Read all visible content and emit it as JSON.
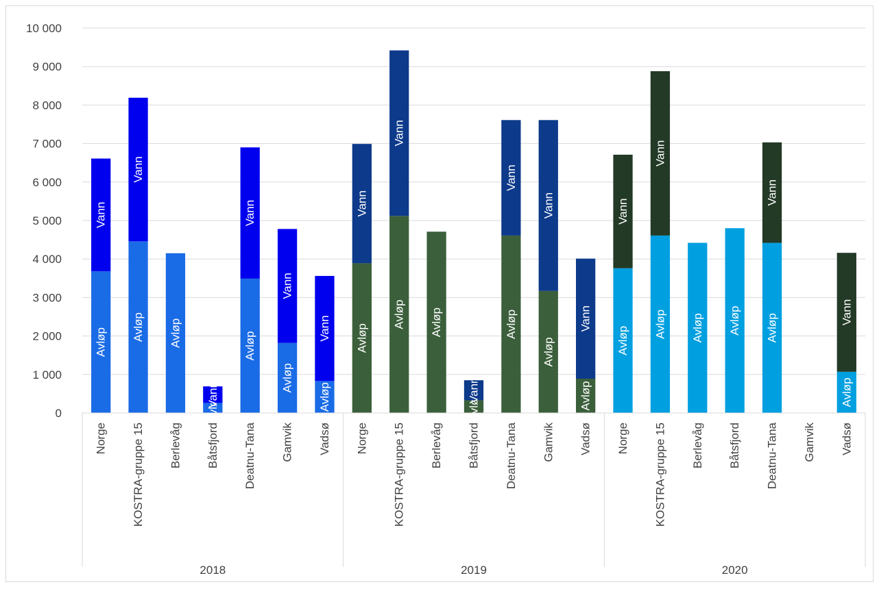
{
  "chart_data": {
    "type": "bar",
    "stacked": true,
    "title": "",
    "xlabel": "",
    "ylabel": "",
    "ylim": [
      0,
      10000
    ],
    "yticks": [
      0,
      1000,
      2000,
      3000,
      4000,
      5000,
      6000,
      7000,
      8000,
      9000,
      10000
    ],
    "ytick_labels": [
      "0",
      "1 000",
      "2 000",
      "3 000",
      "4 000",
      "5 000",
      "6 000",
      "7 000",
      "8 000",
      "9 000",
      "10 000"
    ],
    "grid": "horizontal",
    "legend": "none",
    "segment_labels": [
      "Avløp",
      "Vann"
    ],
    "groups": [
      {
        "year": "2018",
        "colors": {
          "avlop": "#1a6be6",
          "vann": "#0000ee"
        },
        "categories": [
          "Norge",
          "KOSTRA-gruppe 15",
          "Berlevåg",
          "Båtsfjord",
          "Deatnu-Tana",
          "Gamvik",
          "Vadsø"
        ],
        "avlop": [
          3680,
          4460,
          4150,
          260,
          3490,
          1820,
          830
        ],
        "vann": [
          2930,
          3730,
          0,
          430,
          3410,
          2960,
          2730
        ]
      },
      {
        "year": "2019",
        "colors": {
          "avlop": "#3b5f3b",
          "vann": "#0d3a8a"
        },
        "categories": [
          "Norge",
          "KOSTRA-gruppe 15",
          "Berlevåg",
          "Båtsfjord",
          "Deatnu-Tana",
          "Gamvik",
          "Vadsø"
        ],
        "avlop": [
          3890,
          5120,
          4710,
          330,
          4610,
          3170,
          890
        ],
        "vann": [
          3100,
          4300,
          0,
          520,
          3000,
          4440,
          3120
        ]
      },
      {
        "year": "2020",
        "colors": {
          "avlop": "#009fe0",
          "vann": "#233a26"
        },
        "categories": [
          "Norge",
          "KOSTRA-gruppe 15",
          "Berlevåg",
          "Båtsfjord",
          "Deatnu-Tana",
          "Gamvik",
          "Vadsø"
        ],
        "avlop": [
          3760,
          4610,
          4420,
          4800,
          4420,
          0,
          1070
        ],
        "vann": [
          2950,
          4270,
          0,
          0,
          2610,
          0,
          3090
        ]
      }
    ]
  }
}
